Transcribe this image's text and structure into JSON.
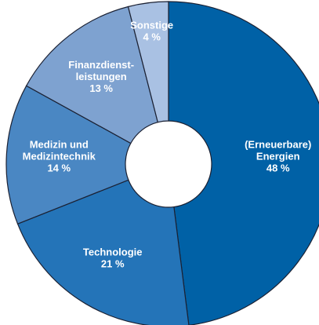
{
  "chart_data": {
    "type": "donut",
    "categories": [
      [
        "(Erneuerbare)",
        "Energien"
      ],
      [
        "Technologie"
      ],
      [
        "Medizin und",
        "Medizintechnik"
      ],
      [
        "Finanzdienst-",
        "leistungen"
      ],
      [
        "Sonstige"
      ]
    ],
    "values": [
      48,
      21,
      14,
      13,
      4
    ],
    "value_labels": [
      "48 %",
      "21 %",
      "14 %",
      "13 %",
      "4 %"
    ],
    "colors": [
      "#0061a6",
      "#2474b8",
      "#4a87c3",
      "#7ea2d0",
      "#a9c1e3"
    ]
  }
}
